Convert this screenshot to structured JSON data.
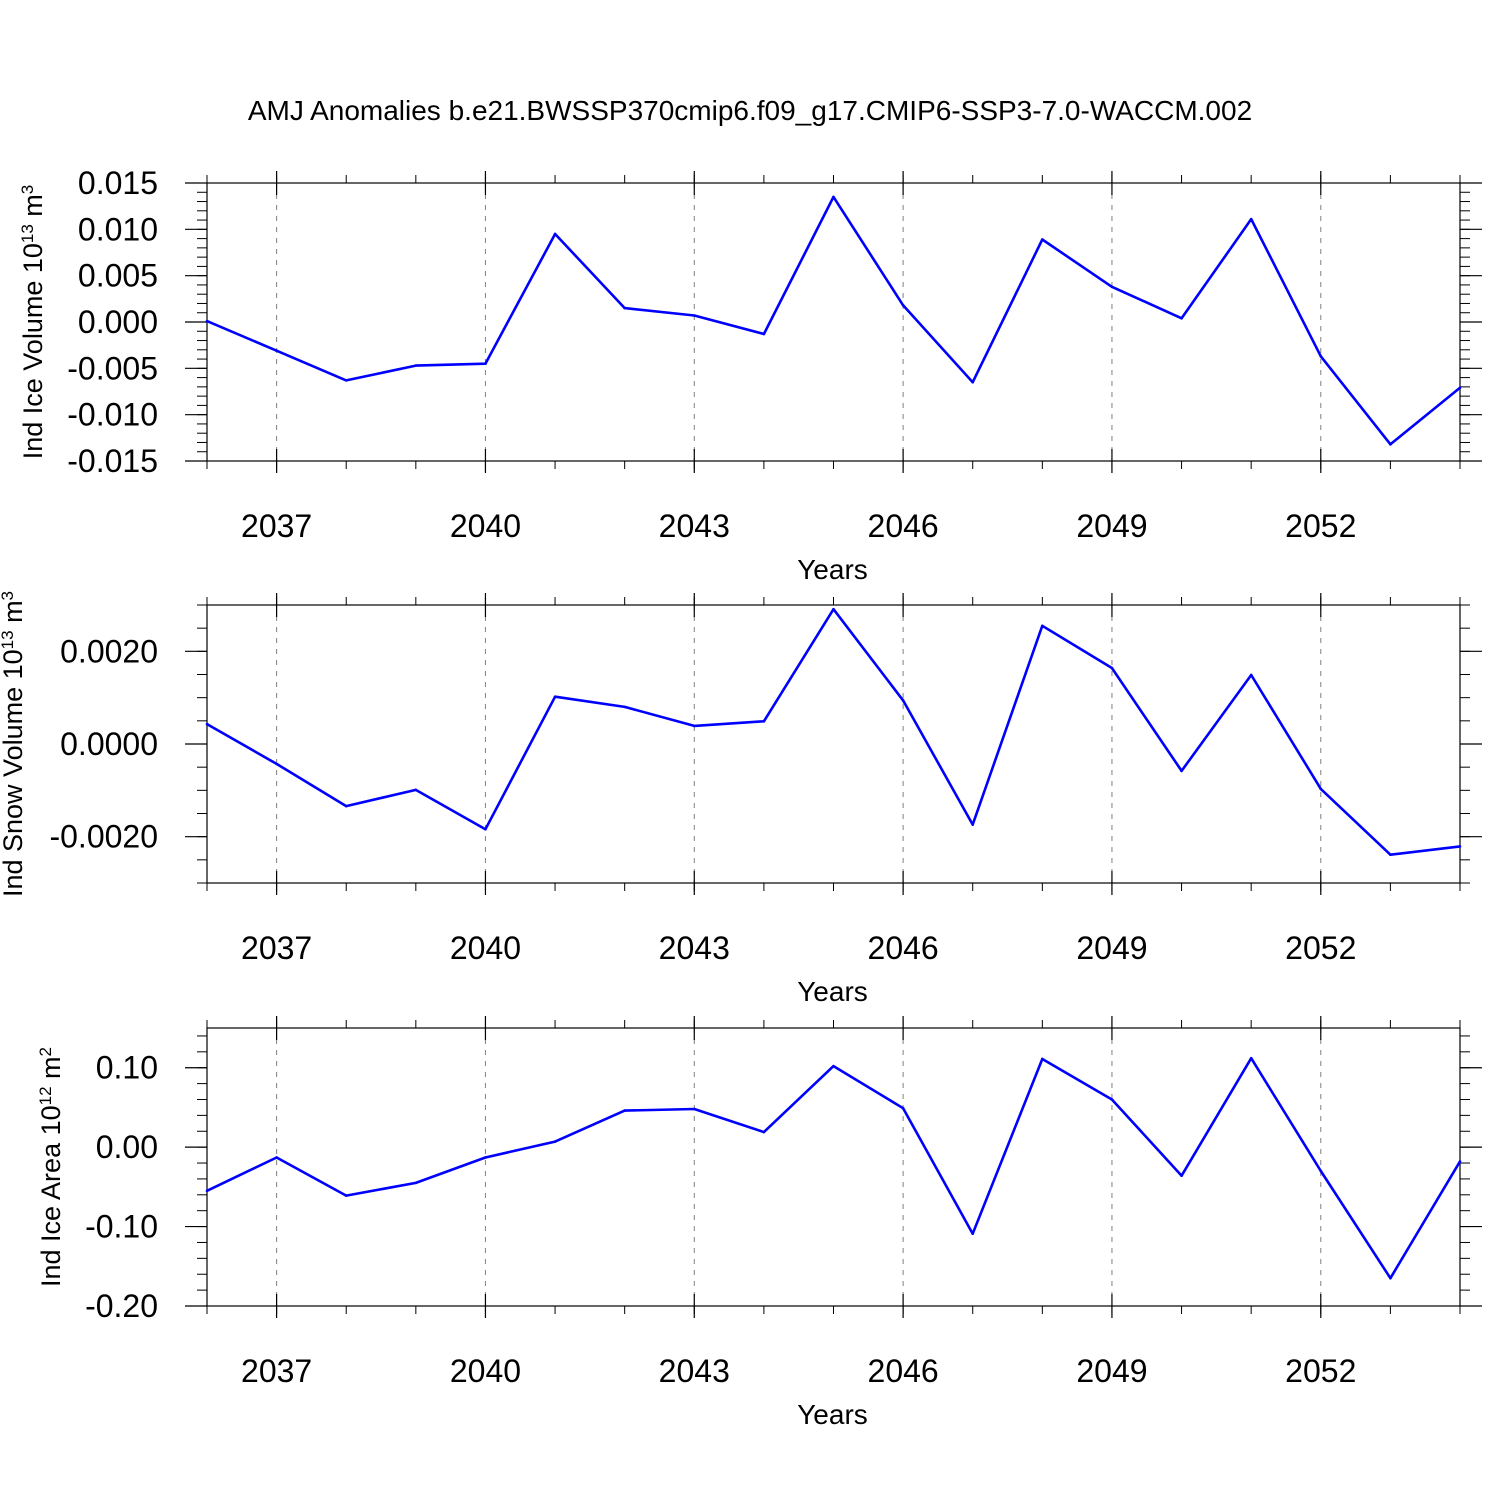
{
  "title": "AMJ Anomalies b.e21.BWSSP370cmip6.f09_g17.CMIP6-SSP3-7.0-WACCM.002",
  "colors": {
    "line": "#0000ff",
    "axis": "#000000",
    "grid": "#808080"
  },
  "chart_data": [
    {
      "type": "line",
      "ylabel": {
        "text": "Ind Ice Volume 10",
        "exp": "13",
        "unit": " m",
        "unit_exp": "3"
      },
      "xlabel": "Years",
      "xlim": [
        2036,
        2054
      ],
      "ylim": [
        -0.015,
        0.015
      ],
      "xticks": [
        "2037",
        "2040",
        "2043",
        "2046",
        "2049",
        "2052"
      ],
      "yticks": [
        "0.015",
        "0.010",
        "0.005",
        "0.000",
        "-0.005",
        "-0.010",
        "-0.015"
      ],
      "grid": "vertical dashed at major x ticks",
      "series": [
        {
          "x": [
            2036,
            2037,
            2038,
            2039,
            2040,
            2041,
            2042,
            2043,
            2044,
            2045,
            2046,
            2047,
            2048,
            2049,
            2050,
            2051,
            2052,
            2053,
            2054
          ],
          "values": [
            0.0001,
            -0.0031,
            -0.0063,
            -0.0047,
            -0.0045,
            0.0095,
            0.0015,
            0.0007,
            -0.0013,
            0.0135,
            0.0018,
            -0.0065,
            0.0089,
            0.0038,
            0.0004,
            0.0111,
            -0.0037,
            -0.0132,
            -0.0071
          ]
        }
      ]
    },
    {
      "type": "line",
      "ylabel": {
        "text": "Ind Snow Volume 10",
        "exp": "13",
        "unit": " m",
        "unit_exp": "3"
      },
      "xlabel": "Years",
      "xlim": [
        2036,
        2054
      ],
      "ylim": [
        -0.003,
        0.003
      ],
      "xticks": [
        "2037",
        "2040",
        "2043",
        "2046",
        "2049",
        "2052"
      ],
      "yticks": [
        "0.0020",
        "0.0000",
        "-0.0020"
      ],
      "grid": "vertical dashed at major x ticks",
      "series": [
        {
          "x": [
            2036,
            2037,
            2038,
            2039,
            2040,
            2041,
            2042,
            2043,
            2044,
            2045,
            2046,
            2047,
            2048,
            2049,
            2050,
            2051,
            2052,
            2053,
            2054
          ],
          "values": [
            0.00043,
            -0.00043,
            -0.00134,
            -0.00099,
            -0.00184,
            0.00102,
            0.0008,
            0.00039,
            0.00049,
            0.00291,
            0.00094,
            -0.00174,
            0.00255,
            0.00164,
            -0.00058,
            0.00149,
            -0.00097,
            -0.00239,
            -0.00221
          ]
        }
      ]
    },
    {
      "type": "line",
      "ylabel": {
        "text": "Ind Ice Area 10",
        "exp": "12",
        "unit": " m",
        "unit_exp": "2"
      },
      "xlabel": "Years",
      "xlim": [
        2036,
        2054
      ],
      "ylim": [
        -0.2,
        0.15
      ],
      "xticks": [
        "2037",
        "2040",
        "2043",
        "2046",
        "2049",
        "2052"
      ],
      "yticks": [
        "0.10",
        "0.00",
        "-0.10",
        "-0.20"
      ],
      "grid": "vertical dashed at major x ticks",
      "series": [
        {
          "x": [
            2036,
            2037,
            2038,
            2039,
            2040,
            2041,
            2042,
            2043,
            2044,
            2045,
            2046,
            2047,
            2048,
            2049,
            2050,
            2051,
            2052,
            2053,
            2054
          ],
          "values": [
            -0.055,
            -0.013,
            -0.061,
            -0.045,
            -0.013,
            0.007,
            0.046,
            0.048,
            0.019,
            0.102,
            0.049,
            -0.109,
            0.111,
            0.06,
            -0.036,
            0.112,
            -0.03,
            -0.165,
            -0.018
          ]
        }
      ]
    }
  ]
}
